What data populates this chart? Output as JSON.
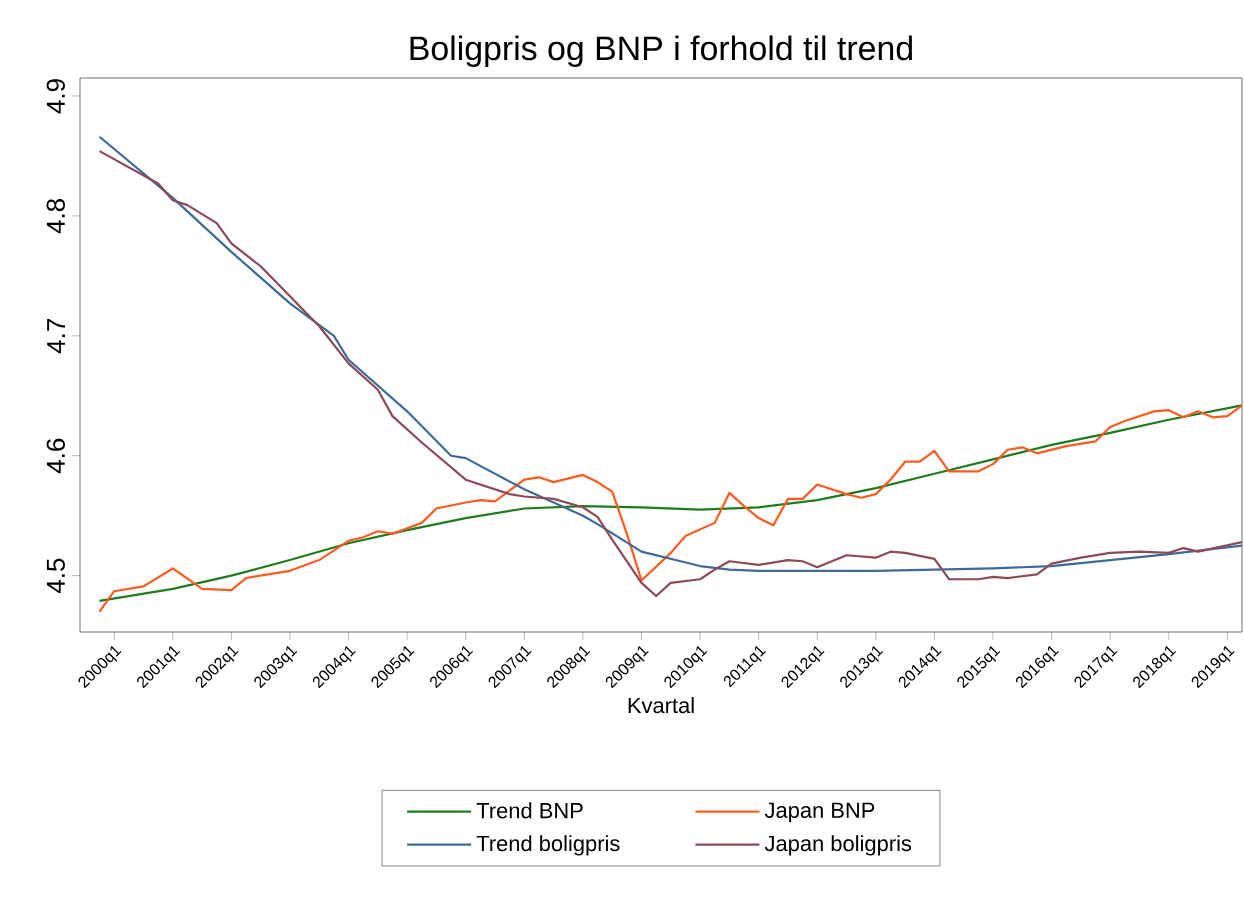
{
  "chart_data": {
    "type": "line",
    "title": "Boligpris og BNP i forhold til trend",
    "xlabel": "Kvartal",
    "xlim": [
      "1999-06-01",
      "2019-04-01"
    ],
    "ylim": [
      4.453,
      4.915
    ],
    "yticks": [
      4.5,
      4.6,
      4.7,
      4.8,
      4.9
    ],
    "xticks": [
      {
        "value": "2000-01",
        "label": "2000q1"
      },
      {
        "value": "2001-01",
        "label": "2001q1"
      },
      {
        "value": "2002-01",
        "label": "2002q1"
      },
      {
        "value": "2003-01",
        "label": "2003q1"
      },
      {
        "value": "2004-01",
        "label": "2004q1"
      },
      {
        "value": "2005-01",
        "label": "2005q1"
      },
      {
        "value": "2006-01",
        "label": "2006q1"
      },
      {
        "value": "2007-01",
        "label": "2007q1"
      },
      {
        "value": "2008-01",
        "label": "2008q1"
      },
      {
        "value": "2009-01",
        "label": "2009q1"
      },
      {
        "value": "2010-01",
        "label": "2010q1"
      },
      {
        "value": "2011-01",
        "label": "2011q1"
      },
      {
        "value": "2012-01",
        "label": "2012q1"
      },
      {
        "value": "2013-01",
        "label": "2013q1"
      },
      {
        "value": "2014-01",
        "label": "2014q1"
      },
      {
        "value": "2015-01",
        "label": "2015q1"
      },
      {
        "value": "2016-01",
        "label": "2016q1"
      },
      {
        "value": "2017-01",
        "label": "2017q1"
      },
      {
        "value": "2018-01",
        "label": "2018q1"
      },
      {
        "value": "2019-01",
        "label": "2019q1"
      }
    ],
    "grid": false,
    "legend": "bottom",
    "series": [
      {
        "name": "Trend BNP",
        "color": "#1e7b1e",
        "x": [
          "1999-10",
          "2001-01",
          "2002-01",
          "2003-01",
          "2004-01",
          "2005-01",
          "2006-01",
          "2007-01",
          "2008-01",
          "2009-01",
          "2010-01",
          "2011-01",
          "2012-01",
          "2013-01",
          "2014-01",
          "2015-01",
          "2016-01",
          "2017-01",
          "2018-01",
          "2019-04"
        ],
        "values": [
          4.479,
          4.489,
          4.5,
          4.513,
          4.527,
          4.538,
          4.548,
          4.556,
          4.558,
          4.557,
          4.555,
          4.557,
          4.563,
          4.573,
          4.585,
          4.597,
          4.609,
          4.619,
          4.63,
          4.642
        ]
      },
      {
        "name": "Japan BNP",
        "color": "#ff5a1f",
        "x": [
          "1999-10",
          "2000-01",
          "2000-07",
          "2001-01",
          "2001-07",
          "2002-01",
          "2002-04",
          "2003-01",
          "2003-07",
          "2004-01",
          "2004-04",
          "2004-07",
          "2004-10",
          "2005-04",
          "2005-07",
          "2006-01",
          "2006-04",
          "2006-07",
          "2007-01",
          "2007-04",
          "2007-07",
          "2008-01",
          "2008-04",
          "2008-07",
          "2008-10",
          "2009-01",
          "2009-07",
          "2009-10",
          "2010-04",
          "2010-07",
          "2010-10",
          "2011-01",
          "2011-04",
          "2011-07",
          "2011-10",
          "2012-01",
          "2012-07",
          "2012-10",
          "2013-01",
          "2013-04",
          "2013-07",
          "2013-10",
          "2014-01",
          "2014-04",
          "2014-10",
          "2015-01",
          "2015-04",
          "2015-07",
          "2015-10",
          "2016-04",
          "2016-10",
          "2017-01",
          "2017-04",
          "2017-10",
          "2018-01",
          "2018-04",
          "2018-07",
          "2018-10",
          "2019-01",
          "2019-04"
        ],
        "values": [
          4.47,
          4.487,
          4.491,
          4.506,
          4.489,
          4.488,
          4.498,
          4.504,
          4.513,
          4.529,
          4.532,
          4.537,
          4.535,
          4.544,
          4.556,
          4.561,
          4.563,
          4.562,
          4.58,
          4.582,
          4.578,
          4.584,
          4.578,
          4.57,
          4.535,
          4.496,
          4.519,
          4.533,
          4.544,
          4.569,
          4.558,
          4.548,
          4.542,
          4.564,
          4.564,
          4.576,
          4.568,
          4.565,
          4.568,
          4.58,
          4.595,
          4.595,
          4.604,
          4.587,
          4.587,
          4.593,
          4.605,
          4.607,
          4.602,
          4.608,
          4.612,
          4.624,
          4.629,
          4.637,
          4.638,
          4.632,
          4.637,
          4.632,
          4.633,
          4.642
        ]
      },
      {
        "name": "Trend boligpris",
        "color": "#3e6a98",
        "x": [
          "1999-10",
          "2001-01",
          "2002-01",
          "2003-01",
          "2003-10",
          "2004-01",
          "2005-01",
          "2005-10",
          "2006-01",
          "2007-01",
          "2008-01",
          "2008-04",
          "2009-01",
          "2010-01",
          "2010-07",
          "2011-01",
          "2012-01",
          "2013-01",
          "2014-01",
          "2015-01",
          "2016-01",
          "2017-01",
          "2018-01",
          "2019-04"
        ],
        "values": [
          4.866,
          4.815,
          4.77,
          4.727,
          4.7,
          4.68,
          4.637,
          4.6,
          4.598,
          4.572,
          4.55,
          4.543,
          4.52,
          4.508,
          4.505,
          4.504,
          4.504,
          4.504,
          4.505,
          4.506,
          4.508,
          4.513,
          4.518,
          4.525
        ]
      },
      {
        "name": "Japan boligpris",
        "color": "#8c4a57",
        "x": [
          "1999-10",
          "2000-10",
          "2001-01",
          "2001-04",
          "2001-10",
          "2002-01",
          "2002-07",
          "2003-01",
          "2003-07",
          "2004-01",
          "2004-07",
          "2004-10",
          "2005-04",
          "2006-01",
          "2006-10",
          "2007-01",
          "2007-07",
          "2008-01",
          "2008-04",
          "2008-07",
          "2009-01",
          "2009-04",
          "2009-07",
          "2010-01",
          "2010-04",
          "2010-07",
          "2011-01",
          "2011-07",
          "2011-10",
          "2012-01",
          "2012-07",
          "2013-01",
          "2013-04",
          "2013-07",
          "2014-01",
          "2014-04",
          "2014-10",
          "2015-01",
          "2015-04",
          "2015-10",
          "2016-01",
          "2016-07",
          "2017-01",
          "2017-07",
          "2018-01",
          "2018-04",
          "2018-07",
          "2019-04"
        ],
        "values": [
          4.854,
          4.827,
          4.813,
          4.809,
          4.794,
          4.777,
          4.758,
          4.733,
          4.708,
          4.677,
          4.655,
          4.633,
          4.611,
          4.58,
          4.568,
          4.566,
          4.564,
          4.557,
          4.549,
          4.53,
          4.494,
          4.483,
          4.494,
          4.497,
          4.505,
          4.512,
          4.509,
          4.513,
          4.512,
          4.507,
          4.517,
          4.515,
          4.52,
          4.519,
          4.514,
          4.497,
          4.497,
          4.499,
          4.498,
          4.501,
          4.51,
          4.515,
          4.519,
          4.52,
          4.519,
          4.523,
          4.52,
          4.528
        ]
      }
    ]
  }
}
